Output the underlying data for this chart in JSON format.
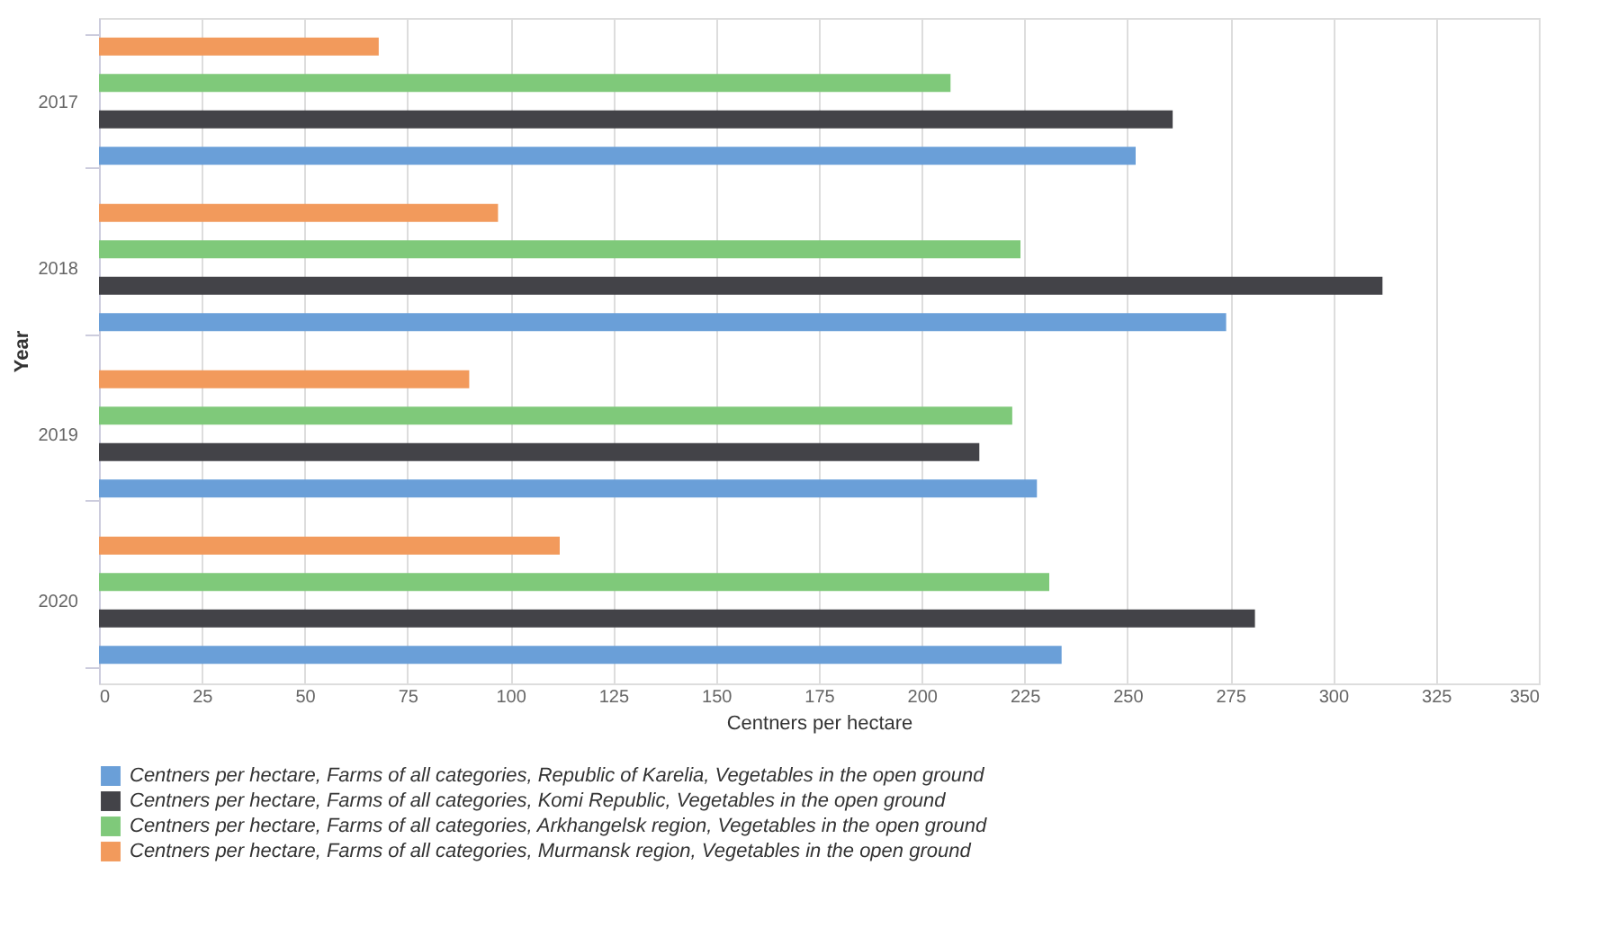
{
  "chart_data": {
    "type": "bar",
    "orientation": "horizontal",
    "xlabel": "Centners per hectare",
    "ylabel": "Year",
    "categories": [
      "2017",
      "2018",
      "2019",
      "2020"
    ],
    "series": [
      {
        "name": "Centners per hectare, Farms of all categories, Republic of Karelia, Vegetables in the open ground",
        "color": "#6a9fd8",
        "values": [
          252,
          274,
          228,
          234
        ]
      },
      {
        "name": "Centners per hectare, Farms of all categories, Komi Republic, Vegetables in the open ground",
        "color": "#434348",
        "values": [
          261,
          312,
          214,
          281
        ]
      },
      {
        "name": "Centners per hectare, Farms of all categories, Arkhangelsk region, Vegetables in the open ground",
        "color": "#7fc97a",
        "values": [
          207,
          224,
          222,
          231
        ]
      },
      {
        "name": "Centners per hectare, Farms of all categories, Murmansk region, Vegetables in the open ground",
        "color": "#f29a5c",
        "values": [
          68,
          97,
          90,
          112
        ]
      }
    ],
    "xlim": [
      0,
      350
    ],
    "xticks": [
      0,
      25,
      50,
      75,
      100,
      125,
      150,
      175,
      200,
      225,
      250,
      275,
      300,
      325,
      350
    ],
    "grid": "x",
    "legend": "bottom"
  }
}
